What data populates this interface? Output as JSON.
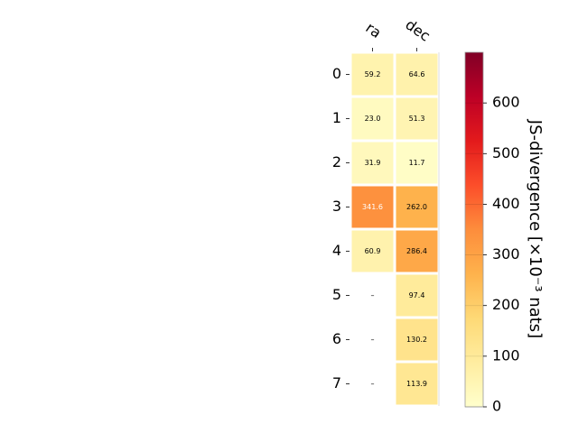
{
  "chart_data": {
    "type": "heatmap",
    "columns": [
      "ra",
      "dec"
    ],
    "rows": [
      "0",
      "1",
      "2",
      "3",
      "4",
      "5",
      "6",
      "7"
    ],
    "values": [
      [
        59.2,
        64.6
      ],
      [
        23.0,
        51.3
      ],
      [
        31.9,
        11.7
      ],
      [
        341.6,
        262.0
      ],
      [
        60.9,
        286.4
      ],
      [
        null,
        97.4
      ],
      [
        null,
        130.2
      ],
      [
        null,
        113.9
      ]
    ],
    "missing_label": "–",
    "colorbar": {
      "label": "JS-divergence [×10⁻³ nats]",
      "min": 0,
      "max": 700,
      "ticks": [
        0,
        100,
        200,
        300,
        400,
        500,
        600
      ],
      "colormap": "YlOrRd"
    }
  }
}
